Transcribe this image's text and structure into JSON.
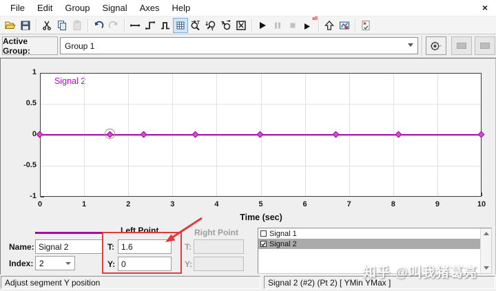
{
  "menu_bar": {
    "items": [
      "File",
      "Edit",
      "Group",
      "Signal",
      "Axes",
      "Help"
    ]
  },
  "window": {
    "close_glyph": "×"
  },
  "toolbar": {
    "buttons": [
      "open",
      "save",
      "cut",
      "copy",
      "paste",
      "undo",
      "redo",
      "flat-line",
      "step",
      "pulse",
      "grid",
      "zoom-t",
      "zoom-y",
      "zoom-xy",
      "fit-view",
      "run",
      "pause",
      "stop",
      "run-all",
      "parent-up",
      "scope-snapshot",
      "verification-settings"
    ],
    "disabled": [
      "paste",
      "redo",
      "pause",
      "stop"
    ],
    "active": [
      "grid"
    ],
    "play_all_label": "all"
  },
  "active_group": {
    "label": "Active Group:",
    "value": "Group 1"
  },
  "plot": {
    "signal_label": "Signal 2",
    "xlabel": "Time (sec)",
    "x_ticks": [
      "0",
      "1",
      "2",
      "3",
      "4",
      "5",
      "6",
      "7",
      "8",
      "9",
      "10"
    ],
    "y_ticks": [
      "1",
      "0.5",
      "0",
      "-0.5",
      "-1"
    ],
    "marker_times": [
      0,
      1.6,
      2.36,
      3.53,
      5,
      6.72,
      8.13,
      10
    ],
    "selected_marker_t": 1.6
  },
  "chart_data": {
    "type": "line",
    "title": "Signal 2",
    "xlabel": "Time (sec)",
    "xlim": [
      0,
      10
    ],
    "ylim": [
      -1,
      1
    ],
    "grid": true,
    "series": [
      {
        "name": "Signal 2",
        "x": [
          0,
          1.6,
          2.36,
          3.53,
          5,
          6.72,
          8.13,
          10
        ],
        "y": [
          0,
          0,
          0,
          0,
          0,
          0,
          0,
          0
        ]
      }
    ],
    "selected_point": {
      "t": 1.6,
      "y": 0,
      "index": 2
    }
  },
  "point_editor": {
    "left_point_label": "Left Point",
    "right_point_label": "Right Point",
    "name_label": "Name:",
    "name_value": "Signal 2",
    "index_label": "Index:",
    "index_value": "2",
    "t_label": "T:",
    "t_value": "1.6",
    "y_label": "Y:",
    "y_value": "0",
    "right_t_label": "T:",
    "right_y_label": "Y:"
  },
  "signal_list": {
    "items": [
      {
        "label": "Signal 1",
        "checked": false,
        "selected": false
      },
      {
        "label": "Signal 2",
        "checked": true,
        "selected": true
      }
    ]
  },
  "status_bar": {
    "left": "Adjust segment Y position",
    "right": "Signal 2 (#2) (Pt 2)  [ YMin YMax ]"
  },
  "watermark": "知乎 @叫我猪葛亮",
  "colors": {
    "signal_line": "#a800a8",
    "signal_label": "#cc00cc",
    "marker_fill": "#d24fd2",
    "selection_ring": "#cb7b7b",
    "annotation": "#e43a3a",
    "grid_line": "#e2e2e2",
    "active_tool_bg": "#cfe6f7",
    "active_tool_border": "#79aeda",
    "list_selection_bg": "#ababab"
  }
}
